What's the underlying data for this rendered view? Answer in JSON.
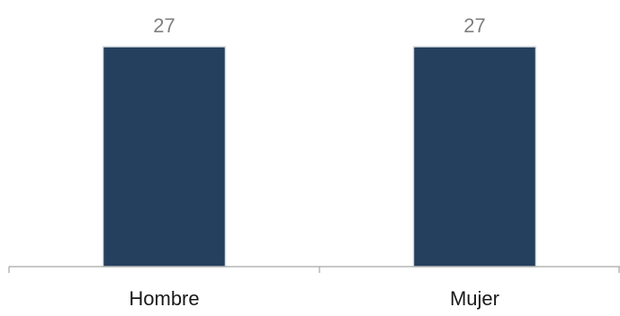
{
  "chart_data": {
    "type": "bar",
    "categories": [
      "Hombre",
      "Mujer"
    ],
    "values": [
      27,
      27
    ],
    "data_labels": [
      "27",
      "27"
    ],
    "ylim": [
      0,
      27
    ],
    "grid": false,
    "legend": "none",
    "title": "",
    "xlabel": "",
    "ylabel": "",
    "colors": {
      "bar": "#253f5e",
      "bar_edge": "#d9dde2",
      "axis": "#a6a6a6",
      "tick_label": "#1a1a1a",
      "data_label": "#7f7f7f"
    }
  }
}
